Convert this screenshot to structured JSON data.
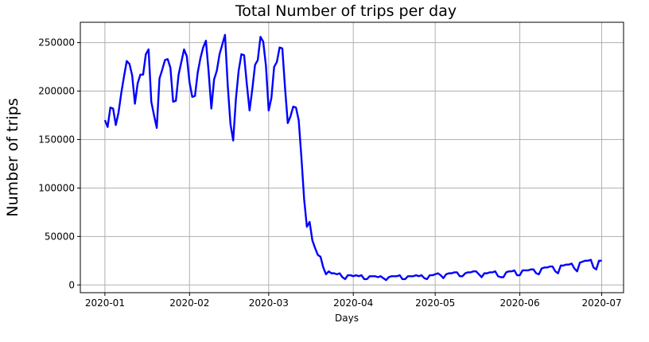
{
  "chart_data": {
    "type": "line",
    "title": "Total Number of trips per day",
    "xlabel": "Days",
    "ylabel": "Number of trips",
    "x_start": "2020-01-01",
    "x_end": "2020-06-30",
    "xlim": [
      "2019-12-23",
      "2020-07-09"
    ],
    "ylim": [
      -8000,
      271000
    ],
    "x_ticks": [
      "2020-01",
      "2020-02",
      "2020-03",
      "2020-04",
      "2020-05",
      "2020-06",
      "2020-07"
    ],
    "x_tick_dates": [
      "2020-01-01",
      "2020-02-01",
      "2020-03-01",
      "2020-04-01",
      "2020-05-01",
      "2020-06-01",
      "2020-07-01"
    ],
    "y_ticks": [
      0,
      50000,
      100000,
      150000,
      200000,
      250000
    ],
    "grid": true,
    "series": [
      {
        "color": "#0000ff",
        "values": [
          170000,
          163000,
          183000,
          182000,
          165000,
          178000,
          198000,
          215000,
          231000,
          228000,
          216000,
          187000,
          208000,
          217000,
          217000,
          238000,
          243000,
          189000,
          175000,
          162000,
          213000,
          222000,
          232000,
          233000,
          224000,
          189000,
          190000,
          217000,
          230000,
          243000,
          236000,
          209000,
          194000,
          195000,
          219000,
          234000,
          245000,
          252000,
          220000,
          182000,
          212000,
          221000,
          238000,
          248000,
          258000,
          206000,
          166000,
          149000,
          192000,
          221000,
          238000,
          237000,
          207000,
          180000,
          202000,
          227000,
          232000,
          256000,
          251000,
          226000,
          180000,
          193000,
          225000,
          230000,
          245000,
          244000,
          203000,
          167000,
          174000,
          184000,
          183000,
          170000,
          131000,
          88000,
          60000,
          65000,
          46000,
          38000,
          31000,
          29000,
          18000,
          11000,
          14000,
          12000,
          12000,
          11000,
          12000,
          8000,
          6000,
          10000,
          10000,
          9000,
          10000,
          9000,
          10000,
          6000,
          6000,
          9000,
          9000,
          9000,
          8000,
          9000,
          7000,
          5000,
          8000,
          9000,
          9000,
          9000,
          10000,
          6000,
          6000,
          9000,
          9000,
          9000,
          10000,
          9000,
          10000,
          7000,
          6000,
          10000,
          10000,
          11000,
          12000,
          10000,
          7000,
          11000,
          12000,
          12000,
          13000,
          13000,
          9000,
          9000,
          12000,
          13000,
          13000,
          14000,
          14000,
          11000,
          8000,
          12000,
          12000,
          13000,
          13000,
          14000,
          9000,
          8000,
          8000,
          13000,
          14000,
          14000,
          15000,
          10000,
          10000,
          15000,
          15000,
          15000,
          16000,
          16000,
          12000,
          11000,
          17000,
          18000,
          18000,
          19000,
          19000,
          14000,
          12000,
          20000,
          20000,
          21000,
          21000,
          22000,
          17000,
          14000,
          23000,
          24000,
          25000,
          25000,
          26000,
          18000,
          16000,
          25000,
          25000
        ]
      }
    ]
  }
}
